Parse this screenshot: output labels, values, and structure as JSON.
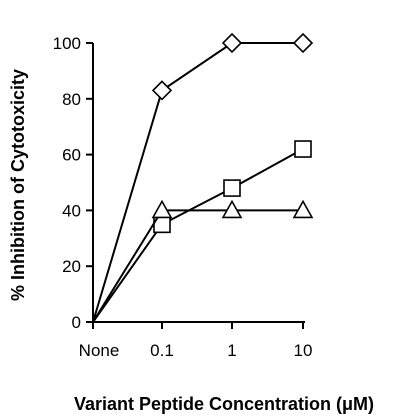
{
  "chart_data": {
    "type": "line",
    "title": "",
    "xlabel": "Variant Peptide Concentration (μM)",
    "ylabel": "% Inhibition of Cytotoxicity",
    "categories": [
      "None",
      "0.1",
      "1",
      "10"
    ],
    "ylim": [
      0,
      100
    ],
    "yticks": [
      0,
      20,
      40,
      60,
      80,
      100
    ],
    "grid": false,
    "series": [
      {
        "marker": "diamond",
        "values": [
          0,
          83,
          100,
          100
        ]
      },
      {
        "marker": "square",
        "values": [
          0,
          35,
          48,
          62
        ]
      },
      {
        "marker": "triangle",
        "values": [
          0,
          40,
          40,
          40
        ]
      }
    ]
  }
}
